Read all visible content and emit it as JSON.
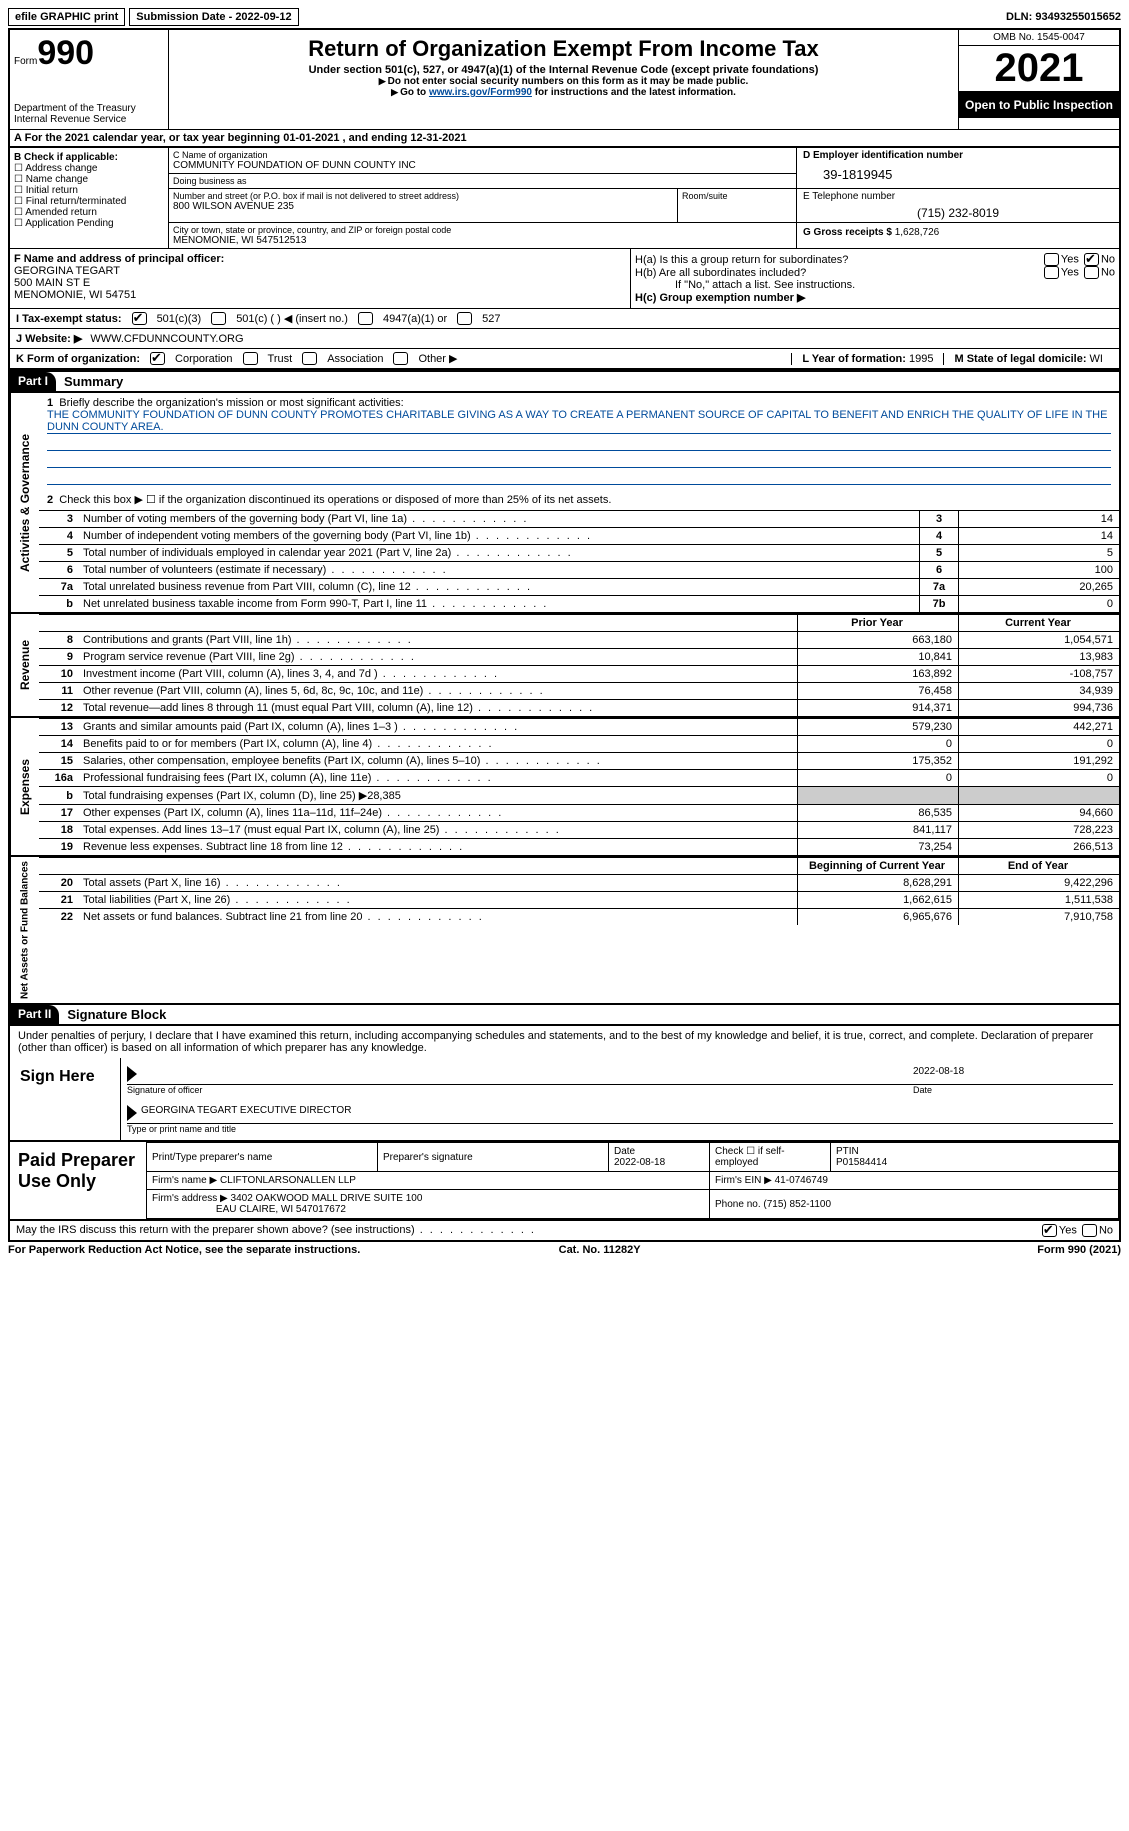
{
  "topbar": {
    "efile": "efile GRAPHIC print",
    "submission": "Submission Date - 2022-09-12",
    "dln": "DLN: 93493255015652"
  },
  "header": {
    "form_word": "Form",
    "form_num": "990",
    "dept": "Department of the Treasury",
    "irs": "Internal Revenue Service",
    "title": "Return of Organization Exempt From Income Tax",
    "subtitle": "Under section 501(c), 527, or 4947(a)(1) of the Internal Revenue Code (except private foundations)",
    "note1": "Do not enter social security numbers on this form as it may be made public.",
    "note2_pre": "Go to ",
    "note2_link": "www.irs.gov/Form990",
    "note2_post": " for instructions and the latest information.",
    "omb": "OMB No. 1545-0047",
    "year": "2021",
    "open": "Open to Public Inspection"
  },
  "rowA": "For the 2021 calendar year, or tax year beginning 01-01-2021   , and ending 12-31-2021",
  "boxB": {
    "title": "B Check if applicable:",
    "opts": [
      "Address change",
      "Name change",
      "Initial return",
      "Final return/terminated",
      "Amended return",
      "Application Pending"
    ]
  },
  "boxC": {
    "name_lbl": "C Name of organization",
    "name": "COMMUNITY FOUNDATION OF DUNN COUNTY INC",
    "dba_lbl": "Doing business as",
    "addr_lbl": "Number and street (or P.O. box if mail is not delivered to street address)",
    "addr": "800 WILSON AVENUE 235",
    "room_lbl": "Room/suite",
    "city_lbl": "City or town, state or province, country, and ZIP or foreign postal code",
    "city": "MENOMONIE, WI  547512513"
  },
  "boxD": {
    "lbl": "D Employer identification number",
    "val": "39-1819945"
  },
  "boxE": {
    "lbl": "E Telephone number",
    "val": "(715) 232-8019"
  },
  "boxG": {
    "lbl": "G Gross receipts $ ",
    "val": "1,628,726"
  },
  "boxF": {
    "lbl": "F  Name and address of principal officer:",
    "name": "GEORGINA TEGART",
    "addr1": "500 MAIN ST E",
    "addr2": "MENOMONIE, WI  54751"
  },
  "boxH": {
    "ha": "H(a)  Is this a group return for subordinates?",
    "hb": "H(b)  Are all subordinates included?",
    "hb_note": "If \"No,\" attach a list. See instructions.",
    "hc": "H(c)  Group exemption number ▶",
    "yes": "Yes",
    "no": "No"
  },
  "rowI": {
    "lbl": "I   Tax-exempt status:",
    "o1": "501(c)(3)",
    "o2": "501(c) (  ) ◀ (insert no.)",
    "o3": "4947(a)(1) or",
    "o4": "527"
  },
  "rowJ": {
    "lbl": "J   Website: ▶",
    "val": "WWW.CFDUNNCOUNTY.ORG"
  },
  "rowK": {
    "lbl": "K Form of organization:",
    "corp": "Corporation",
    "trust": "Trust",
    "assoc": "Association",
    "other": "Other ▶",
    "l": "L Year of formation: ",
    "l_val": "1995",
    "m": "M State of legal domicile: ",
    "m_val": "WI"
  },
  "part1": {
    "hdr": "Part I",
    "title": "Summary",
    "q1": "Briefly describe the organization's mission or most significant activities:",
    "mission": "THE COMMUNITY FOUNDATION OF DUNN COUNTY PROMOTES CHARITABLE GIVING AS A WAY TO CREATE A PERMANENT SOURCE OF CAPITAL TO BENEFIT AND ENRICH THE QUALITY OF LIFE IN THE DUNN COUNTY AREA.",
    "q2": "Check this box ▶ ☐  if the organization discontinued its operations or disposed of more than 25% of its net assets."
  },
  "vlabels": {
    "gov": "Activities & Governance",
    "rev": "Revenue",
    "exp": "Expenses",
    "net": "Net Assets or Fund Balances"
  },
  "govlines": [
    {
      "n": "3",
      "t": "Number of voting members of the governing body (Part VI, line 1a)",
      "b": "3",
      "v": "14"
    },
    {
      "n": "4",
      "t": "Number of independent voting members of the governing body (Part VI, line 1b)",
      "b": "4",
      "v": "14"
    },
    {
      "n": "5",
      "t": "Total number of individuals employed in calendar year 2021 (Part V, line 2a)",
      "b": "5",
      "v": "5"
    },
    {
      "n": "6",
      "t": "Total number of volunteers (estimate if necessary)",
      "b": "6",
      "v": "100"
    },
    {
      "n": "7a",
      "t": "Total unrelated business revenue from Part VIII, column (C), line 12",
      "b": "7a",
      "v": "20,265"
    },
    {
      "n": "b",
      "t": "Net unrelated business taxable income from Form 990-T, Part I, line 11",
      "b": "7b",
      "v": "0"
    }
  ],
  "colhdr": {
    "prior": "Prior Year",
    "curr": "Current Year"
  },
  "revlines": [
    {
      "n": "8",
      "t": "Contributions and grants (Part VIII, line 1h)",
      "p": "663,180",
      "c": "1,054,571"
    },
    {
      "n": "9",
      "t": "Program service revenue (Part VIII, line 2g)",
      "p": "10,841",
      "c": "13,983"
    },
    {
      "n": "10",
      "t": "Investment income (Part VIII, column (A), lines 3, 4, and 7d )",
      "p": "163,892",
      "c": "-108,757"
    },
    {
      "n": "11",
      "t": "Other revenue (Part VIII, column (A), lines 5, 6d, 8c, 9c, 10c, and 11e)",
      "p": "76,458",
      "c": "34,939"
    },
    {
      "n": "12",
      "t": "Total revenue—add lines 8 through 11 (must equal Part VIII, column (A), line 12)",
      "p": "914,371",
      "c": "994,736"
    }
  ],
  "explines": [
    {
      "n": "13",
      "t": "Grants and similar amounts paid (Part IX, column (A), lines 1–3 )",
      "p": "579,230",
      "c": "442,271"
    },
    {
      "n": "14",
      "t": "Benefits paid to or for members (Part IX, column (A), line 4)",
      "p": "0",
      "c": "0"
    },
    {
      "n": "15",
      "t": "Salaries, other compensation, employee benefits (Part IX, column (A), lines 5–10)",
      "p": "175,352",
      "c": "191,292"
    },
    {
      "n": "16a",
      "t": "Professional fundraising fees (Part IX, column (A), line 11e)",
      "p": "0",
      "c": "0"
    },
    {
      "n": "b",
      "t": "Total fundraising expenses (Part IX, column (D), line 25) ▶28,385",
      "grey": true
    },
    {
      "n": "17",
      "t": "Other expenses (Part IX, column (A), lines 11a–11d, 11f–24e)",
      "p": "86,535",
      "c": "94,660"
    },
    {
      "n": "18",
      "t": "Total expenses. Add lines 13–17 (must equal Part IX, column (A), line 25)",
      "p": "841,117",
      "c": "728,223"
    },
    {
      "n": "19",
      "t": "Revenue less expenses. Subtract line 18 from line 12",
      "p": "73,254",
      "c": "266,513"
    }
  ],
  "nethdr": {
    "b": "Beginning of Current Year",
    "e": "End of Year"
  },
  "netlines": [
    {
      "n": "20",
      "t": "Total assets (Part X, line 16)",
      "p": "8,628,291",
      "c": "9,422,296"
    },
    {
      "n": "21",
      "t": "Total liabilities (Part X, line 26)",
      "p": "1,662,615",
      "c": "1,511,538"
    },
    {
      "n": "22",
      "t": "Net assets or fund balances. Subtract line 21 from line 20",
      "p": "6,965,676",
      "c": "7,910,758"
    }
  ],
  "part2": {
    "hdr": "Part II",
    "title": "Signature Block",
    "decl": "Under penalties of perjury, I declare that I have examined this return, including accompanying schedules and statements, and to the best of my knowledge and belief, it is true, correct, and complete. Declaration of preparer (other than officer) is based on all information of which preparer has any knowledge."
  },
  "sign": {
    "here": "Sign Here",
    "sig_lbl": "Signature of officer",
    "date_lbl": "Date",
    "date": "2022-08-18",
    "name": "GEORGINA TEGART EXECUTIVE DIRECTOR",
    "name_lbl": "Type or print name and title"
  },
  "prep": {
    "title": "Paid Preparer Use Only",
    "h1": "Print/Type preparer's name",
    "h2": "Preparer's signature",
    "h3_lbl": "Date",
    "h3": "2022-08-18",
    "h4": "Check ☐ if self-employed",
    "h5_lbl": "PTIN",
    "h5": "P01584414",
    "firm_lbl": "Firm's name   ▶",
    "firm": "CLIFTONLARSONALLEN LLP",
    "ein_lbl": "Firm's EIN ▶",
    "ein": "41-0746749",
    "addr_lbl": "Firm's address ▶",
    "addr1": "3402 OAKWOOD MALL DRIVE SUITE 100",
    "addr2": "EAU CLAIRE, WI  547017672",
    "phone_lbl": "Phone no.",
    "phone": "(715) 852-1100"
  },
  "footer": {
    "discuss": "May the IRS discuss this return with the preparer shown above? (see instructions)",
    "yes": "Yes",
    "no": "No",
    "pra": "For Paperwork Reduction Act Notice, see the separate instructions.",
    "cat": "Cat. No. 11282Y",
    "form": "Form 990 (2021)"
  }
}
